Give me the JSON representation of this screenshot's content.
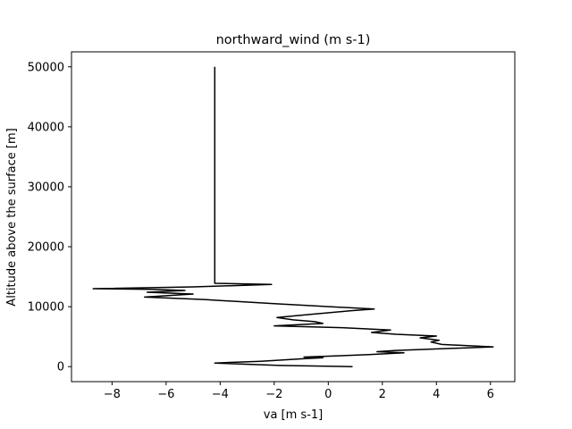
{
  "chart_data": {
    "type": "line",
    "title": "northward_wind (m s-1)",
    "xlabel": "va [m s-1]",
    "ylabel": "Altitude above the surface [m]",
    "xlim": [
      -9.5,
      6.9
    ],
    "ylim": [
      -2500,
      52500
    ],
    "xticks": [
      -8,
      -6,
      -4,
      -2,
      0,
      2,
      4,
      6
    ],
    "yticks": [
      0,
      10000,
      20000,
      30000,
      40000,
      50000
    ],
    "grid": false,
    "series": [
      {
        "color": "#000000",
        "points": [
          [
            0.9,
            0
          ],
          [
            -1.8,
            200
          ],
          [
            -4.2,
            600
          ],
          [
            -2.5,
            900
          ],
          [
            -1.0,
            1300
          ],
          [
            -0.2,
            1500
          ],
          [
            -0.9,
            1600
          ],
          [
            1.5,
            2000
          ],
          [
            2.8,
            2300
          ],
          [
            1.8,
            2500
          ],
          [
            2.5,
            2700
          ],
          [
            6.1,
            3300
          ],
          [
            4.2,
            3700
          ],
          [
            3.8,
            4100
          ],
          [
            4.1,
            4400
          ],
          [
            3.4,
            4800
          ],
          [
            4.0,
            5100
          ],
          [
            2.5,
            5400
          ],
          [
            1.6,
            5700
          ],
          [
            2.3,
            6100
          ],
          [
            0.5,
            6500
          ],
          [
            -2.0,
            6800
          ],
          [
            -0.2,
            7200
          ],
          [
            -0.5,
            7500
          ],
          [
            -1.3,
            7800
          ],
          [
            -1.9,
            8200
          ],
          [
            -0.7,
            8700
          ],
          [
            0.8,
            9300
          ],
          [
            1.7,
            9600
          ],
          [
            -2.0,
            10500
          ],
          [
            -4.6,
            11200
          ],
          [
            -6.8,
            11600
          ],
          [
            -5.0,
            12100
          ],
          [
            -6.7,
            12400
          ],
          [
            -5.3,
            12700
          ],
          [
            -6.5,
            12900
          ],
          [
            -8.7,
            13000
          ],
          [
            -5.0,
            13300
          ],
          [
            -2.1,
            13700
          ],
          [
            -4.2,
            13900
          ],
          [
            -4.2,
            20000
          ],
          [
            -4.2,
            30000
          ],
          [
            -4.2,
            40000
          ],
          [
            -4.2,
            50000
          ]
        ]
      }
    ]
  }
}
